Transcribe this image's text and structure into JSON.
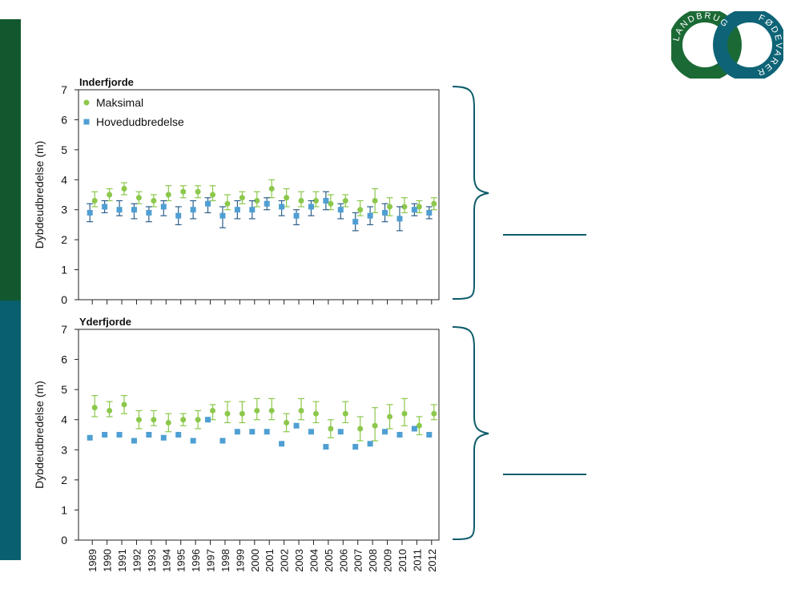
{
  "colors": {
    "green_band": "#11582e",
    "teal_band": "#0a5f6e",
    "maksimal": "#8cc84b",
    "hovedudbredelse": "#4f9fd3",
    "hoved_error": "#2d5f8a",
    "brace": "#0d5c6b",
    "logo_green": "#1b6a35",
    "logo_teal": "#0e6476"
  },
  "logo": {
    "left_text": "LANDBRUG",
    "right_text": "FØDEVARER",
    "icon": "landbrug-fodevarer-logo-icon"
  },
  "chart_data": [
    {
      "type": "scatter",
      "title": "Inderfjorde",
      "xlabel": "",
      "ylabel": "Dybdeudbredelse (m)",
      "ylim": [
        0,
        7
      ],
      "yticks": [
        0,
        1,
        2,
        3,
        4,
        5,
        6,
        7
      ],
      "grid": false,
      "legend_position": "top-left",
      "categories": [
        "1989",
        "1990",
        "1991",
        "1992",
        "1993",
        "1994",
        "1995",
        "1996",
        "1997",
        "1998",
        "1999",
        "2000",
        "2001",
        "2002",
        "2003",
        "2004",
        "2005",
        "2006",
        "2007",
        "2008",
        "2009",
        "2010",
        "2011",
        "2012"
      ],
      "series": [
        {
          "name": "Maksimal",
          "marker": "circle",
          "values": [
            3.3,
            3.5,
            3.7,
            3.4,
            3.3,
            3.5,
            3.6,
            3.6,
            3.5,
            3.2,
            3.4,
            3.3,
            3.7,
            3.4,
            3.3,
            3.3,
            3.2,
            3.3,
            3.0,
            3.3,
            3.1,
            3.1,
            3.1,
            3.2
          ],
          "error_low": [
            3.1,
            3.3,
            3.5,
            3.2,
            3.1,
            3.3,
            3.4,
            3.4,
            3.3,
            3.0,
            3.2,
            3.1,
            3.4,
            3.1,
            3.1,
            3.1,
            3.0,
            3.1,
            2.8,
            2.9,
            2.8,
            2.9,
            2.9,
            3.0
          ],
          "error_high": [
            3.6,
            3.7,
            3.9,
            3.6,
            3.5,
            3.8,
            3.8,
            3.8,
            3.8,
            3.5,
            3.6,
            3.6,
            4.0,
            3.7,
            3.6,
            3.6,
            3.5,
            3.5,
            3.3,
            3.7,
            3.4,
            3.4,
            3.3,
            3.4
          ]
        },
        {
          "name": "Hovedudbredelse",
          "marker": "square",
          "values": [
            2.9,
            3.1,
            3.0,
            3.0,
            2.9,
            3.1,
            2.8,
            3.0,
            3.2,
            2.8,
            3.0,
            3.0,
            3.2,
            3.1,
            2.8,
            3.1,
            3.3,
            3.0,
            2.6,
            2.8,
            2.9,
            2.7,
            3.0,
            2.9
          ],
          "error_low": [
            2.6,
            2.9,
            2.8,
            2.7,
            2.6,
            2.8,
            2.5,
            2.7,
            2.9,
            2.4,
            2.7,
            2.7,
            3.0,
            2.8,
            2.5,
            2.8,
            3.0,
            2.7,
            2.3,
            2.5,
            2.6,
            2.3,
            2.8,
            2.7
          ],
          "error_high": [
            3.2,
            3.3,
            3.3,
            3.2,
            3.1,
            3.3,
            3.1,
            3.3,
            3.4,
            3.1,
            3.3,
            3.3,
            3.4,
            3.3,
            3.0,
            3.3,
            3.6,
            3.2,
            2.9,
            3.1,
            3.2,
            3.1,
            3.2,
            3.1
          ]
        }
      ]
    },
    {
      "type": "scatter",
      "title": "Yderfjorde",
      "xlabel": "",
      "ylabel": "Dybdeudbredelse (m)",
      "ylim": [
        0,
        7
      ],
      "yticks": [
        0,
        1,
        2,
        3,
        4,
        5,
        6,
        7
      ],
      "grid": false,
      "categories": [
        "1989",
        "1990",
        "1991",
        "1992",
        "1993",
        "1994",
        "1995",
        "1996",
        "1997",
        "1998",
        "1999",
        "2000",
        "2001",
        "2002",
        "2003",
        "2004",
        "2005",
        "2006",
        "2007",
        "2008",
        "2009",
        "2010",
        "2011",
        "2012"
      ],
      "series": [
        {
          "name": "Maksimal",
          "marker": "circle",
          "values": [
            4.4,
            4.3,
            4.5,
            4.0,
            4.0,
            3.9,
            4.0,
            4.0,
            4.3,
            4.2,
            4.2,
            4.3,
            4.3,
            3.9,
            4.3,
            4.2,
            3.7,
            4.2,
            3.7,
            3.8,
            4.1,
            4.2,
            3.8,
            4.2
          ],
          "error_low": [
            4.1,
            4.1,
            4.2,
            3.7,
            3.8,
            3.6,
            3.8,
            3.7,
            4.0,
            3.9,
            3.9,
            4.0,
            4.0,
            3.6,
            4.0,
            3.9,
            3.4,
            3.9,
            3.3,
            3.3,
            3.7,
            3.8,
            3.5,
            4.0
          ],
          "error_high": [
            4.8,
            4.6,
            4.8,
            4.3,
            4.3,
            4.2,
            4.2,
            4.3,
            4.5,
            4.6,
            4.6,
            4.7,
            4.7,
            4.2,
            4.7,
            4.6,
            4.0,
            4.6,
            4.1,
            4.4,
            4.5,
            4.7,
            4.1,
            4.5
          ]
        },
        {
          "name": "Hovedudbredelse",
          "marker": "square",
          "values": [
            3.4,
            3.5,
            3.5,
            3.3,
            3.5,
            3.4,
            3.5,
            3.3,
            4.0,
            3.3,
            3.6,
            3.6,
            3.6,
            3.2,
            3.8,
            3.6,
            3.1,
            3.6,
            3.1,
            3.2,
            3.6,
            3.5,
            3.7,
            3.5
          ]
        }
      ]
    }
  ]
}
